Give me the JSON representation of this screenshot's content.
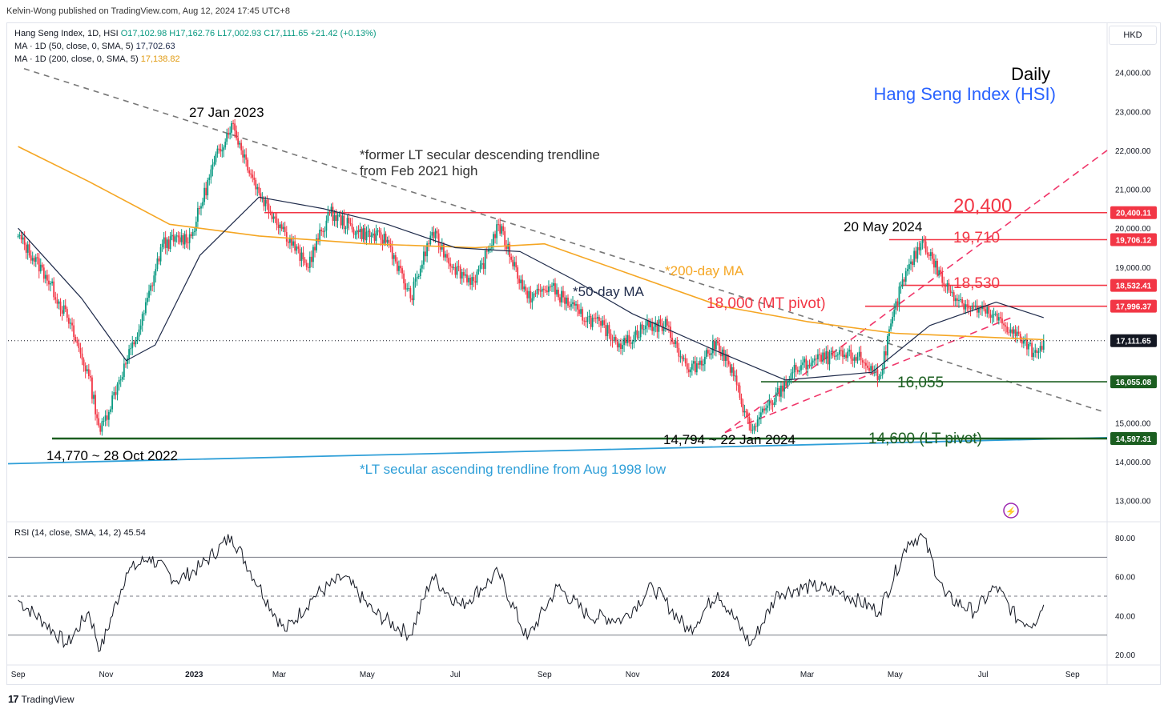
{
  "publisher_line": "Kelvin-Wong published on TradingView.com, Aug 12, 2024 17:45 UTC+8",
  "currency_button": "HKD",
  "legend": {
    "main_prefix": "Hang Seng Index, 1D, HSI",
    "main_ohlc": "O17,102.98  H17,162.76  L17,002.93  C17,111.65  +21.42 (+0.13%)",
    "ma50_label": "MA · 1D (50, close, 0, SMA, 5)",
    "ma50_value": "17,702.63",
    "ma200_label": "MA · 1D (200, close, 0, SMA, 5)",
    "ma200_value": "17,138.82",
    "rsi_label": "RSI (14, close, SMA, 14, 2)",
    "rsi_value": "45.54"
  },
  "footer": {
    "logo": "TradingView"
  },
  "colors": {
    "up": "#089981",
    "down": "#f23645",
    "ma50": "#1e2a4a",
    "ma200": "#f5a623",
    "resistance": "#f23645",
    "support": "#1b5e20",
    "lt_trend": "#2f9fd8",
    "desc_trend": "#777777",
    "channel": "#f0366a",
    "title_blue": "#2962ff"
  },
  "chart_data": {
    "type": "candlestick",
    "title": "Daily",
    "subtitle": "Hang Seng Index (HSI)",
    "ylim": [
      12500,
      25000
    ],
    "y_ticks": [
      "24,000.00",
      "23,000.00",
      "22,000.00",
      "21,000.00",
      "20,000.00",
      "19,000.00",
      "18,000.00",
      "16,000.00",
      "15,000.00",
      "14,000.00",
      "13,000.00"
    ],
    "x_ticks": [
      "Sep",
      "Nov",
      "2023",
      "Mar",
      "May",
      "Jul",
      "Sep",
      "Nov",
      "2024",
      "Mar",
      "May",
      "Jul",
      "Sep"
    ],
    "price_path": [
      {
        "date": "2022-09-01",
        "close": 19800
      },
      {
        "date": "2022-09-20",
        "close": 18800
      },
      {
        "date": "2022-10-05",
        "close": 17700
      },
      {
        "date": "2022-10-20",
        "close": 16200
      },
      {
        "date": "2022-10-28",
        "close": 14770
      },
      {
        "date": "2022-11-10",
        "close": 16100
      },
      {
        "date": "2022-11-25",
        "close": 17500
      },
      {
        "date": "2022-12-10",
        "close": 19600
      },
      {
        "date": "2022-12-30",
        "close": 19800
      },
      {
        "date": "2023-01-15",
        "close": 21700
      },
      {
        "date": "2023-01-27",
        "close": 22700
      },
      {
        "date": "2023-02-15",
        "close": 20900
      },
      {
        "date": "2023-03-05",
        "close": 19900
      },
      {
        "date": "2023-03-20",
        "close": 19000
      },
      {
        "date": "2023-04-05",
        "close": 20400
      },
      {
        "date": "2023-04-25",
        "close": 19900
      },
      {
        "date": "2023-05-15",
        "close": 19700
      },
      {
        "date": "2023-05-31",
        "close": 18200
      },
      {
        "date": "2023-06-15",
        "close": 19900
      },
      {
        "date": "2023-06-30",
        "close": 19000
      },
      {
        "date": "2023-07-15",
        "close": 18600
      },
      {
        "date": "2023-07-31",
        "close": 20100
      },
      {
        "date": "2023-08-20",
        "close": 18200
      },
      {
        "date": "2023-09-05",
        "close": 18500
      },
      {
        "date": "2023-09-25",
        "close": 17800
      },
      {
        "date": "2023-10-10",
        "close": 17500
      },
      {
        "date": "2023-10-25",
        "close": 17000
      },
      {
        "date": "2023-11-10",
        "close": 17500
      },
      {
        "date": "2023-11-25",
        "close": 17500
      },
      {
        "date": "2023-12-10",
        "close": 16300
      },
      {
        "date": "2023-12-30",
        "close": 17050
      },
      {
        "date": "2024-01-10",
        "close": 16200
      },
      {
        "date": "2024-01-22",
        "close": 14794
      },
      {
        "date": "2024-02-05",
        "close": 15500
      },
      {
        "date": "2024-02-20",
        "close": 16300
      },
      {
        "date": "2024-03-05",
        "close": 16600
      },
      {
        "date": "2024-03-20",
        "close": 16700
      },
      {
        "date": "2024-04-05",
        "close": 16700
      },
      {
        "date": "2024-04-20",
        "close": 16200
      },
      {
        "date": "2024-05-05",
        "close": 18500
      },
      {
        "date": "2024-05-20",
        "close": 19710
      },
      {
        "date": "2024-06-05",
        "close": 18500
      },
      {
        "date": "2024-06-20",
        "close": 18000
      },
      {
        "date": "2024-07-05",
        "close": 17800
      },
      {
        "date": "2024-07-20",
        "close": 17400
      },
      {
        "date": "2024-08-05",
        "close": 16800
      },
      {
        "date": "2024-08-12",
        "close": 17111.65
      }
    ],
    "ma50_path": [
      {
        "date": "2022-09-01",
        "value": 20000
      },
      {
        "date": "2022-10-15",
        "value": 18200
      },
      {
        "date": "2022-11-15",
        "value": 16600
      },
      {
        "date": "2022-12-05",
        "value": 17000
      },
      {
        "date": "2023-01-05",
        "value": 19300
      },
      {
        "date": "2023-02-15",
        "value": 20800
      },
      {
        "date": "2023-04-01",
        "value": 20500
      },
      {
        "date": "2023-05-15",
        "value": 20100
      },
      {
        "date": "2023-07-01",
        "value": 19500
      },
      {
        "date": "2023-08-15",
        "value": 19400
      },
      {
        "date": "2023-09-20",
        "value": 18700
      },
      {
        "date": "2023-11-01",
        "value": 17800
      },
      {
        "date": "2024-01-01",
        "value": 16800
      },
      {
        "date": "2024-02-15",
        "value": 16100
      },
      {
        "date": "2024-04-15",
        "value": 16300
      },
      {
        "date": "2024-05-25",
        "value": 17500
      },
      {
        "date": "2024-07-10",
        "value": 18100
      },
      {
        "date": "2024-08-12",
        "value": 17702.63
      }
    ],
    "ma200_path": [
      {
        "date": "2022-09-01",
        "value": 22100
      },
      {
        "date": "2022-10-20",
        "value": 21200
      },
      {
        "date": "2022-12-15",
        "value": 20100
      },
      {
        "date": "2023-02-15",
        "value": 19800
      },
      {
        "date": "2023-05-01",
        "value": 19600
      },
      {
        "date": "2023-07-15",
        "value": 19500
      },
      {
        "date": "2023-09-01",
        "value": 19600
      },
      {
        "date": "2023-11-01",
        "value": 18800
      },
      {
        "date": "2024-01-01",
        "value": 18000
      },
      {
        "date": "2024-03-01",
        "value": 17600
      },
      {
        "date": "2024-05-01",
        "value": 17300
      },
      {
        "date": "2024-08-12",
        "value": 17138.82
      }
    ],
    "rsi": {
      "ylim": [
        15,
        85
      ],
      "y_ticks": [
        "80.00",
        "60.00",
        "40.00",
        "20.00"
      ],
      "bands": [
        70,
        50,
        30
      ],
      "path": [
        {
          "date": "2022-09-01",
          "value": 48
        },
        {
          "date": "2022-09-20",
          "value": 36
        },
        {
          "date": "2022-10-05",
          "value": 25
        },
        {
          "date": "2022-10-20",
          "value": 42
        },
        {
          "date": "2022-10-28",
          "value": 22
        },
        {
          "date": "2022-11-15",
          "value": 62
        },
        {
          "date": "2022-12-01",
          "value": 70
        },
        {
          "date": "2022-12-20",
          "value": 58
        },
        {
          "date": "2023-01-05",
          "value": 65
        },
        {
          "date": "2023-01-27",
          "value": 81
        },
        {
          "date": "2023-02-15",
          "value": 55
        },
        {
          "date": "2023-03-05",
          "value": 32
        },
        {
          "date": "2023-03-25",
          "value": 50
        },
        {
          "date": "2023-04-15",
          "value": 60
        },
        {
          "date": "2023-05-05",
          "value": 42
        },
        {
          "date": "2023-05-31",
          "value": 30
        },
        {
          "date": "2023-06-15",
          "value": 60
        },
        {
          "date": "2023-07-05",
          "value": 45
        },
        {
          "date": "2023-07-31",
          "value": 62
        },
        {
          "date": "2023-08-20",
          "value": 28
        },
        {
          "date": "2023-09-10",
          "value": 55
        },
        {
          "date": "2023-10-01",
          "value": 40
        },
        {
          "date": "2023-10-25",
          "value": 38
        },
        {
          "date": "2023-11-15",
          "value": 55
        },
        {
          "date": "2023-12-10",
          "value": 32
        },
        {
          "date": "2023-12-30",
          "value": 52
        },
        {
          "date": "2024-01-22",
          "value": 25
        },
        {
          "date": "2024-02-10",
          "value": 52
        },
        {
          "date": "2024-03-05",
          "value": 55
        },
        {
          "date": "2024-03-25",
          "value": 52
        },
        {
          "date": "2024-04-20",
          "value": 42
        },
        {
          "date": "2024-05-10",
          "value": 78
        },
        {
          "date": "2024-05-20",
          "value": 81
        },
        {
          "date": "2024-06-05",
          "value": 50
        },
        {
          "date": "2024-06-25",
          "value": 42
        },
        {
          "date": "2024-07-10",
          "value": 55
        },
        {
          "date": "2024-07-25",
          "value": 38
        },
        {
          "date": "2024-08-05",
          "value": 36
        },
        {
          "date": "2024-08-12",
          "value": 45.54
        }
      ]
    },
    "levels": [
      {
        "price": 20400,
        "label": "20,400",
        "axis_label": "20,400.11",
        "kind": "resistance"
      },
      {
        "price": 19706.12,
        "label": "19,710",
        "axis_label": "19,706.12",
        "kind": "resistance"
      },
      {
        "price": 18532.41,
        "label": "18,530",
        "axis_label": "18,532.41",
        "kind": "resistance"
      },
      {
        "price": 17996.37,
        "label": "18,000 (MT pivot)",
        "axis_label": "17,996.37",
        "kind": "resistance"
      },
      {
        "price": 16055.08,
        "label": "16,055",
        "axis_label": "16,055.08",
        "kind": "support"
      },
      {
        "price": 14597.31,
        "label": "14,600 (LT pivot)",
        "axis_label": "14,597.31",
        "kind": "support"
      }
    ],
    "last_price_label": "17,111.65",
    "annotations": [
      {
        "text": "27 Jan 2023"
      },
      {
        "text": "20 May 2024"
      },
      {
        "text": "14,770 ~ 28 Oct 2022"
      },
      {
        "text": "14,794 ~ 22 Jan 2024"
      },
      {
        "text": "*former LT secular descending trendline"
      },
      {
        "text": "from Feb 2021 high"
      },
      {
        "text": "*200-day MA"
      },
      {
        "text": "*50-day MA"
      },
      {
        "text": "*LT secular ascending trendline from Aug 1998 low"
      }
    ]
  }
}
